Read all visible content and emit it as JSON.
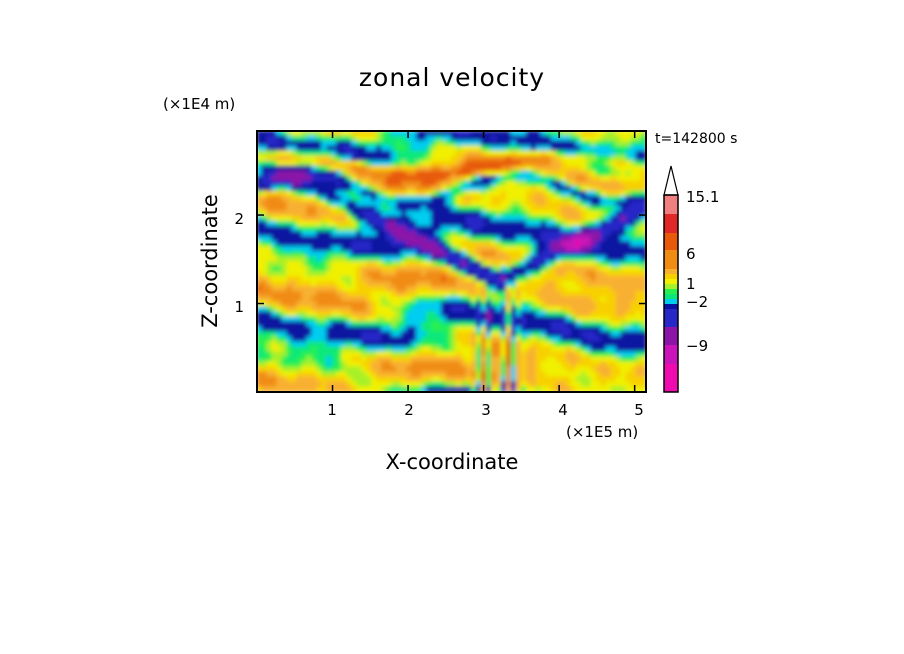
{
  "chart_data": {
    "type": "heatmap",
    "title": "zonal velocity",
    "xlabel": "X-coordinate",
    "ylabel": "Z-coordinate",
    "x_unit": "(×1E5 m)",
    "y_unit": "(×1E4 m)",
    "time_label": "t=142800 s",
    "xlim": [
      0,
      5.15
    ],
    "ylim": [
      0,
      2.95
    ],
    "xticks": [
      "1",
      "2",
      "3",
      "4",
      "5"
    ],
    "yticks": [
      "1",
      "2"
    ],
    "colorbar": {
      "labels": [
        "15.1",
        "6",
        "1",
        "−2",
        "−9"
      ],
      "colors": [
        "#f00bb0",
        "#c814b8",
        "#8c14a8",
        "#2828c8",
        "#0a14a0",
        "#00cdf0",
        "#0be87a",
        "#28f050",
        "#a8f028",
        "#f0f000",
        "#f8d000",
        "#f8b030",
        "#f08c14",
        "#e85a0a",
        "#e02828",
        "#f08080",
        "#f8c0c0",
        "#ffffff"
      ]
    }
  }
}
